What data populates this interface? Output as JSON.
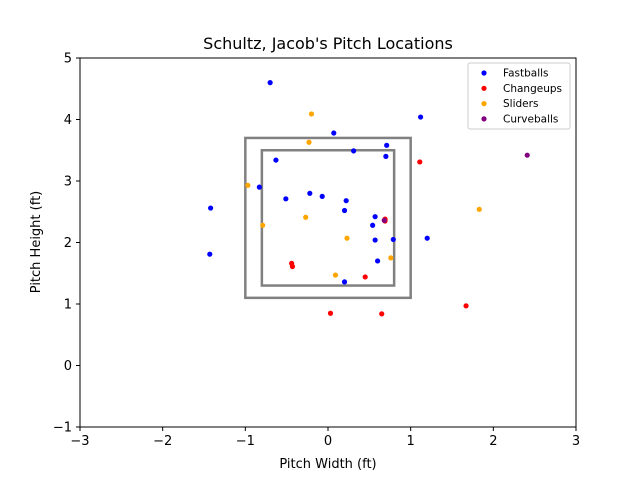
{
  "chart_data": {
    "type": "scatter",
    "title": "Schultz, Jacob's Pitch Locations",
    "xlabel": "Pitch Width (ft)",
    "ylabel": "Pitch Height (ft)",
    "xlim": [
      -3,
      3
    ],
    "ylim": [
      -1,
      5
    ],
    "x_ticks": [
      -3,
      -2,
      -1,
      0,
      1,
      2,
      3
    ],
    "y_ticks": [
      -1,
      0,
      1,
      2,
      3,
      4,
      5
    ],
    "x_tick_labels": [
      "−3",
      "−2",
      "−1",
      "0",
      "1",
      "2",
      "3"
    ],
    "y_tick_labels": [
      "−1",
      "0",
      "1",
      "2",
      "3",
      "4",
      "5"
    ],
    "grid": false,
    "legend_position": "top-right",
    "zones": [
      {
        "x": [
          -1.0,
          1.0
        ],
        "y": [
          1.1,
          3.7
        ],
        "color": "#808080"
      },
      {
        "x": [
          -0.8,
          0.8
        ],
        "y": [
          1.3,
          3.5
        ],
        "color": "#808080"
      }
    ],
    "series": [
      {
        "name": "Fastballs",
        "color": "#0000ff",
        "points": [
          [
            -0.7,
            4.6
          ],
          [
            1.12,
            4.04
          ],
          [
            0.07,
            3.78
          ],
          [
            0.71,
            3.58
          ],
          [
            0.31,
            3.49
          ],
          [
            -0.63,
            3.34
          ],
          [
            0.7,
            3.4
          ],
          [
            -0.83,
            2.9
          ],
          [
            -0.22,
            2.8
          ],
          [
            -0.07,
            2.75
          ],
          [
            -0.51,
            2.71
          ],
          [
            0.22,
            2.68
          ],
          [
            0.2,
            2.52
          ],
          [
            -1.42,
            2.56
          ],
          [
            0.57,
            2.42
          ],
          [
            0.54,
            2.28
          ],
          [
            0.57,
            2.04
          ],
          [
            0.79,
            2.05
          ],
          [
            1.2,
            2.07
          ],
          [
            -1.43,
            1.81
          ],
          [
            0.6,
            1.7
          ],
          [
            0.2,
            1.36
          ]
        ]
      },
      {
        "name": "Changeups",
        "color": "#ff0000",
        "points": [
          [
            1.11,
            3.31
          ],
          [
            0.69,
            2.38
          ],
          [
            0.69,
            2.35
          ],
          [
            -0.44,
            1.66
          ],
          [
            -0.43,
            1.61
          ],
          [
            0.45,
            1.44
          ],
          [
            1.67,
            0.97
          ],
          [
            0.03,
            0.85
          ],
          [
            0.65,
            0.84
          ]
        ]
      },
      {
        "name": "Sliders",
        "color": "#ffa500",
        "points": [
          [
            -0.2,
            4.09
          ],
          [
            -0.23,
            3.63
          ],
          [
            -0.97,
            2.93
          ],
          [
            1.83,
            2.54
          ],
          [
            -0.27,
            2.41
          ],
          [
            -0.79,
            2.28
          ],
          [
            0.23,
            2.07
          ],
          [
            0.76,
            1.75
          ],
          [
            0.09,
            1.47
          ]
        ]
      },
      {
        "name": "Curveballs",
        "color": "#800080",
        "points": [
          [
            2.41,
            3.42
          ],
          [
            0.68,
            2.36
          ]
        ]
      }
    ]
  }
}
